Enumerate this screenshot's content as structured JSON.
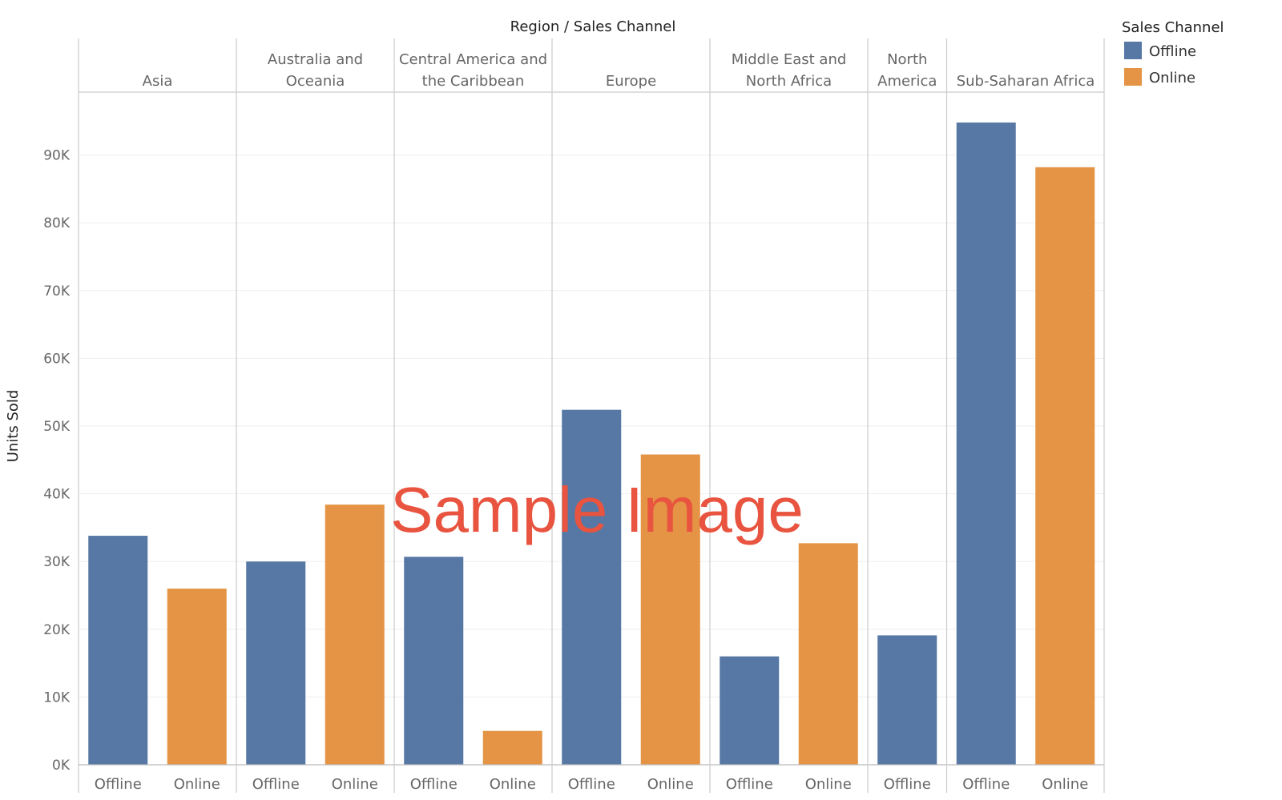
{
  "chart_data": {
    "type": "bar",
    "title": "Region / Sales Channel",
    "ylabel": "Units Sold",
    "xlabel": "",
    "ylim": [
      0,
      98000
    ],
    "yticks": [
      {
        "value": 0,
        "label": "0K"
      },
      {
        "value": 10000,
        "label": "10K"
      },
      {
        "value": 20000,
        "label": "20K"
      },
      {
        "value": 30000,
        "label": "30K"
      },
      {
        "value": 40000,
        "label": "40K"
      },
      {
        "value": 50000,
        "label": "50K"
      },
      {
        "value": 60000,
        "label": "60K"
      },
      {
        "value": 70000,
        "label": "70K"
      },
      {
        "value": 80000,
        "label": "80K"
      },
      {
        "value": 90000,
        "label": "90K"
      }
    ],
    "groups": [
      {
        "region": [
          "Asia"
        ],
        "bars": [
          {
            "channel": "Offline",
            "value": 33800
          },
          {
            "channel": "Online",
            "value": 26000
          }
        ]
      },
      {
        "region": [
          "Australia and",
          "Oceania"
        ],
        "bars": [
          {
            "channel": "Offline",
            "value": 30000
          },
          {
            "channel": "Online",
            "value": 38400
          }
        ]
      },
      {
        "region": [
          "Central America and",
          "the Caribbean"
        ],
        "bars": [
          {
            "channel": "Offline",
            "value": 30700
          },
          {
            "channel": "Online",
            "value": 5000
          }
        ]
      },
      {
        "region": [
          "Europe"
        ],
        "bars": [
          {
            "channel": "Offline",
            "value": 52400
          },
          {
            "channel": "Online",
            "value": 45800
          }
        ]
      },
      {
        "region": [
          "Middle East and",
          "North Africa"
        ],
        "bars": [
          {
            "channel": "Offline",
            "value": 16000
          },
          {
            "channel": "Online",
            "value": 32700
          }
        ]
      },
      {
        "region": [
          "North",
          "America"
        ],
        "bars": [
          {
            "channel": "Offline",
            "value": 19100
          }
        ]
      },
      {
        "region": [
          "Sub-Saharan Africa"
        ],
        "bars": [
          {
            "channel": "Offline",
            "value": 94800
          },
          {
            "channel": "Online",
            "value": 88200
          }
        ]
      }
    ],
    "legend": {
      "title": "Sales Channel",
      "placement": "top-right",
      "items": [
        {
          "name": "Offline",
          "color": "#5778a4"
        },
        {
          "name": "Online",
          "color": "#e49444"
        }
      ]
    },
    "grid": true
  },
  "watermark": "Sample Image"
}
